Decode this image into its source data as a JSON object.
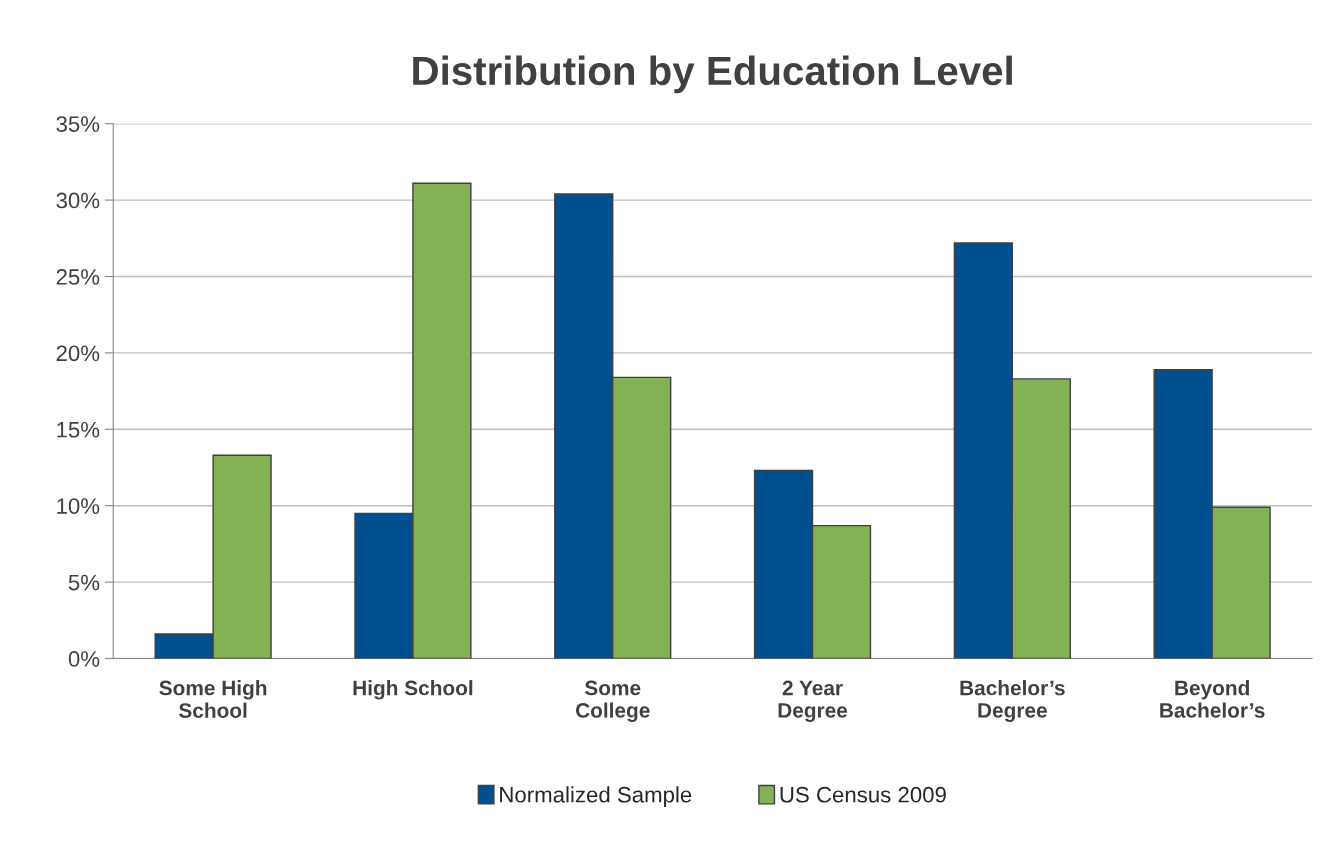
{
  "chart_data": {
    "type": "bar",
    "title": "Distribution by Education Level",
    "categories": [
      "Some High\nSchool",
      "High School",
      "Some\nCollege",
      "2 Year\nDegree",
      "Bachelor’s\nDegree",
      "Beyond\nBachelor’s"
    ],
    "series": [
      {
        "name": "Normalized Sample",
        "color": "#00508f",
        "values": [
          1.6,
          9.5,
          30.4,
          12.3,
          27.2,
          18.9
        ]
      },
      {
        "name": "US Census 2009",
        "color": "#84b153",
        "values": [
          13.3,
          31.1,
          18.4,
          8.7,
          18.3,
          9.9
        ]
      }
    ],
    "ylim": [
      0,
      35
    ],
    "yticks": [
      {
        "value": 0,
        "label": "0%"
      },
      {
        "value": 5,
        "label": "5%"
      },
      {
        "value": 10,
        "label": "10%"
      },
      {
        "value": 15,
        "label": "15%"
      },
      {
        "value": 20,
        "label": "20%"
      },
      {
        "value": 25,
        "label": "25%"
      },
      {
        "value": 30,
        "label": "30%"
      },
      {
        "value": 35,
        "label": "35%"
      }
    ],
    "grid": "y",
    "legend": "bottom"
  }
}
